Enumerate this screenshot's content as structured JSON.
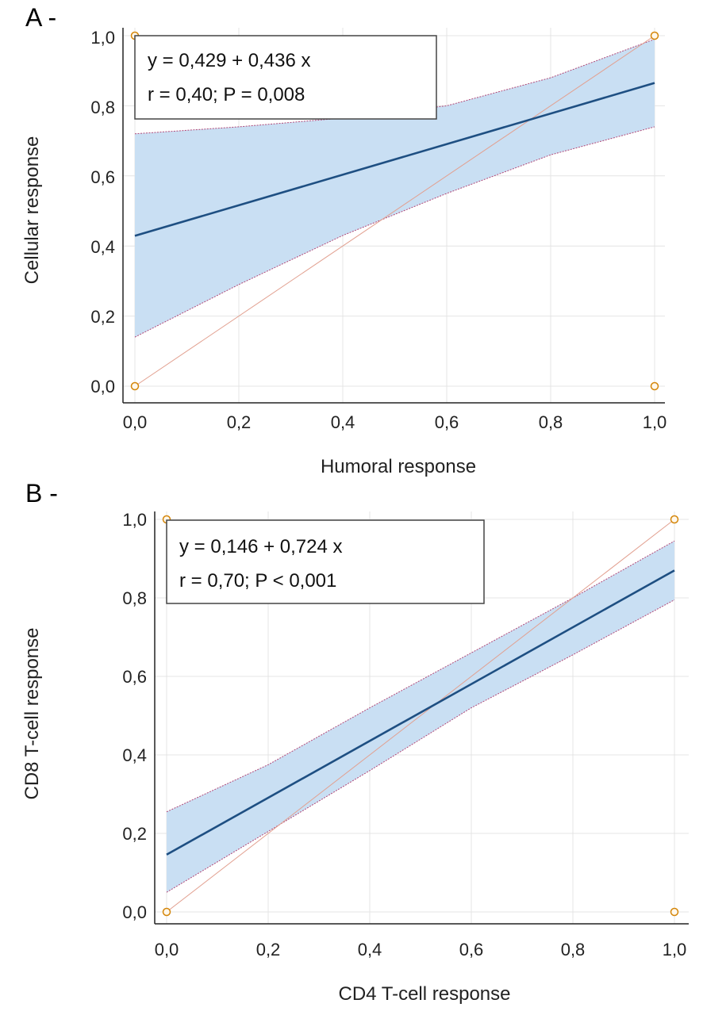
{
  "colors": {
    "band_fill": "#c9dff3",
    "band_edge": "#b04878",
    "fit_line": "#1e4f82",
    "identity_line": "#e2a090",
    "grid": "#e4e4e4",
    "marker": "#d4860a",
    "axis": "#222222"
  },
  "chart_data": [
    {
      "type": "scatter",
      "panel_label": "A -",
      "xlabel": "Humoral response",
      "ylabel": "Cellular response",
      "xlim": [
        0,
        1
      ],
      "ylim": [
        0,
        1
      ],
      "xticks": [
        "0,0",
        "0,2",
        "0,4",
        "0,6",
        "0,8",
        "1,0"
      ],
      "yticks": [
        "0,0",
        "0,2",
        "0,4",
        "0,6",
        "0,8",
        "1,0"
      ],
      "grid": true,
      "equation": "y = 0,429 + 0,436 x",
      "stats": "r = 0,40; P = 0,008",
      "annotation_position": "top-left",
      "points": [
        {
          "x": 0,
          "y": 1
        },
        {
          "x": 0,
          "y": 0
        },
        {
          "x": 1,
          "y": 1
        },
        {
          "x": 1,
          "y": 0
        }
      ],
      "regression": {
        "intercept": 0.429,
        "slope": 0.436
      },
      "ci_band": {
        "x": [
          0,
          0.2,
          0.4,
          0.6,
          0.8,
          1.0
        ],
        "upper": [
          0.72,
          0.74,
          0.765,
          0.8,
          0.88,
          0.99
        ],
        "lower": [
          0.14,
          0.29,
          0.43,
          0.55,
          0.66,
          0.74
        ]
      },
      "identity_line": true
    },
    {
      "type": "scatter",
      "panel_label": "B -",
      "xlabel": "CD4 T-cell response",
      "ylabel": "CD8 T-cell response",
      "xlim": [
        0,
        1
      ],
      "ylim": [
        0,
        1
      ],
      "xticks": [
        "0,0",
        "0,2",
        "0,4",
        "0,6",
        "0,8",
        "1,0"
      ],
      "yticks": [
        "0,0",
        "0,2",
        "0,4",
        "0,6",
        "0,8",
        "1,0"
      ],
      "grid": true,
      "equation": "y = 0,146 + 0,724 x",
      "stats": "r = 0,70; P < 0,001",
      "annotation_position": "top-left",
      "points": [
        {
          "x": 0,
          "y": 1
        },
        {
          "x": 0,
          "y": 0
        },
        {
          "x": 1,
          "y": 1
        },
        {
          "x": 1,
          "y": 0
        }
      ],
      "regression": {
        "intercept": 0.146,
        "slope": 0.724
      },
      "ci_band": {
        "x": [
          0,
          0.2,
          0.4,
          0.6,
          0.8,
          1.0
        ],
        "upper": [
          0.255,
          0.375,
          0.52,
          0.66,
          0.8,
          0.945
        ],
        "lower": [
          0.05,
          0.205,
          0.36,
          0.52,
          0.655,
          0.795
        ]
      },
      "identity_line": true
    }
  ]
}
